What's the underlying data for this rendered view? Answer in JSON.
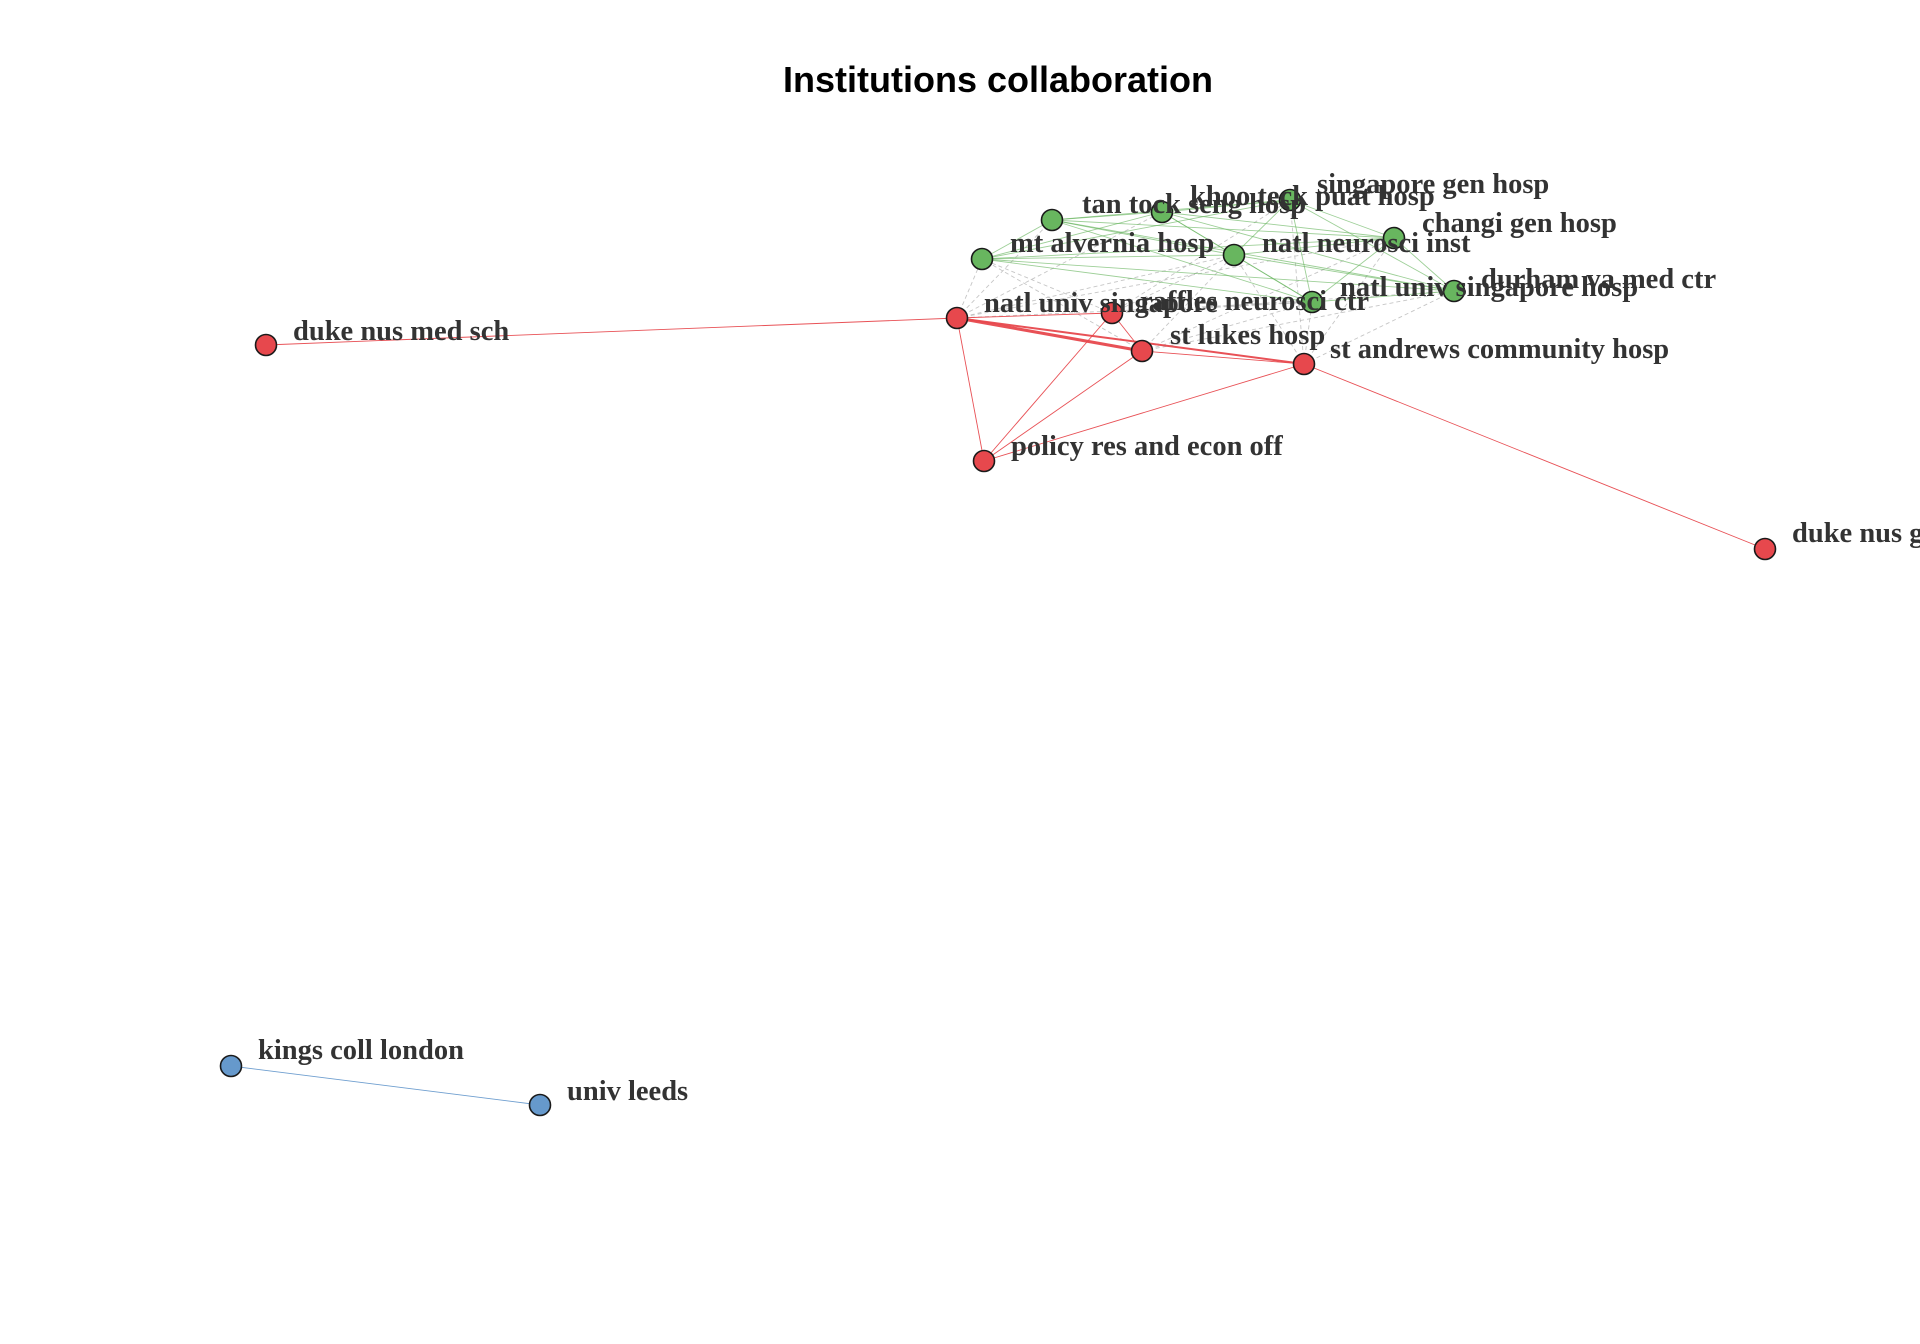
{
  "chart_data": {
    "type": "network",
    "title": "Institutions collaboration",
    "clusters": [
      {
        "id": 1,
        "color": "#E7484D"
      },
      {
        "id": 2,
        "color": "#68B65F"
      },
      {
        "id": 3,
        "color": "#6699CC"
      }
    ],
    "nodes": [
      {
        "id": "singapore_gen_hosp",
        "label": "singapore gen hosp",
        "cluster": 2
      },
      {
        "id": "khoo_teck_puat_hosp",
        "label": "khoo teck puat hosp",
        "cluster": 2
      },
      {
        "id": "tan_tock_seng_hosp",
        "label": "tan tock seng hosp",
        "cluster": 2
      },
      {
        "id": "changi_gen_hosp",
        "label": "changi gen hosp",
        "cluster": 2
      },
      {
        "id": "mt_alvernia_hosp",
        "label": "mt alvernia hosp",
        "cluster": 2
      },
      {
        "id": "natl_neurosci_inst",
        "label": "natl neurosci inst",
        "cluster": 2
      },
      {
        "id": "natl_univ_singapore_hosp",
        "label": "natl univ singapore hosp",
        "cluster": 2
      },
      {
        "id": "durham_va_med_ctr",
        "label": "durham va med ctr",
        "cluster": 2
      },
      {
        "id": "natl_univ_singapore",
        "label": "natl univ singapore",
        "cluster": 1
      },
      {
        "id": "raffles_neurosci_ctr",
        "label": "raffles neurosci ctr",
        "cluster": 1
      },
      {
        "id": "st_lukes_hosp",
        "label": "st lukes hosp",
        "cluster": 1
      },
      {
        "id": "st_andrews_community_hosp",
        "label": "st andrews community hosp",
        "cluster": 1
      },
      {
        "id": "policy_res_and_econ_off",
        "label": "policy res and econ off",
        "cluster": 1
      },
      {
        "id": "duke_nus_med_sch",
        "label": "duke nus med sch",
        "cluster": 1
      },
      {
        "id": "duke_nus_grad_med_sch",
        "label": "duke nus grad med sc",
        "cluster": 1
      },
      {
        "id": "kings_coll_london",
        "label": "kings coll london",
        "cluster": 3
      },
      {
        "id": "univ_leeds",
        "label": "univ leeds",
        "cluster": 3
      }
    ],
    "edges": [
      {
        "source": "natl_univ_singapore",
        "target": "st_lukes_hosp",
        "weight": 3,
        "type": "intra"
      },
      {
        "source": "natl_univ_singapore",
        "target": "st_andrews_community_hosp",
        "weight": 2,
        "type": "intra"
      },
      {
        "source": "natl_univ_singapore",
        "target": "raffles_neurosci_ctr",
        "weight": 1,
        "type": "intra"
      },
      {
        "source": "natl_univ_singapore",
        "target": "policy_res_and_econ_off",
        "weight": 1,
        "type": "intra"
      },
      {
        "source": "natl_univ_singapore",
        "target": "duke_nus_med_sch",
        "weight": 1,
        "type": "intra"
      },
      {
        "source": "raffles_neurosci_ctr",
        "target": "st_lukes_hosp",
        "weight": 1,
        "type": "intra"
      },
      {
        "source": "raffles_neurosci_ctr",
        "target": "policy_res_and_econ_off",
        "weight": 1,
        "type": "intra"
      },
      {
        "source": "st_lukes_hosp",
        "target": "policy_res_and_econ_off",
        "weight": 1,
        "type": "intra"
      },
      {
        "source": "st_lukes_hosp",
        "target": "st_andrews_community_hosp",
        "weight": 1,
        "type": "intra"
      },
      {
        "source": "st_andrews_community_hosp",
        "target": "policy_res_and_econ_off",
        "weight": 1,
        "type": "intra"
      },
      {
        "source": "st_andrews_community_hosp",
        "target": "duke_nus_grad_med_sch",
        "weight": 1,
        "type": "intra"
      },
      {
        "source": "kings_coll_london",
        "target": "univ_leeds",
        "weight": 1,
        "type": "intra"
      },
      {
        "source": "singapore_gen_hosp",
        "target": "khoo_teck_puat_hosp",
        "weight": 1,
        "type": "intra"
      },
      {
        "source": "singapore_gen_hosp",
        "target": "tan_tock_seng_hosp",
        "weight": 1,
        "type": "intra"
      },
      {
        "source": "singapore_gen_hosp",
        "target": "changi_gen_hosp",
        "weight": 1,
        "type": "intra"
      },
      {
        "source": "singapore_gen_hosp",
        "target": "mt_alvernia_hosp",
        "weight": 1,
        "type": "intra"
      },
      {
        "source": "singapore_gen_hosp",
        "target": "natl_neurosci_inst",
        "weight": 1,
        "type": "intra"
      },
      {
        "source": "singapore_gen_hosp",
        "target": "natl_univ_singapore_hosp",
        "weight": 1,
        "type": "intra"
      },
      {
        "source": "singapore_gen_hosp",
        "target": "durham_va_med_ctr",
        "weight": 1,
        "type": "intra"
      },
      {
        "source": "khoo_teck_puat_hosp",
        "target": "tan_tock_seng_hosp",
        "weight": 1,
        "type": "intra"
      },
      {
        "source": "khoo_teck_puat_hosp",
        "target": "changi_gen_hosp",
        "weight": 1,
        "type": "intra"
      },
      {
        "source": "khoo_teck_puat_hosp",
        "target": "mt_alvernia_hosp",
        "weight": 1,
        "type": "intra"
      },
      {
        "source": "khoo_teck_puat_hosp",
        "target": "natl_neurosci_inst",
        "weight": 1,
        "type": "intra"
      },
      {
        "source": "khoo_teck_puat_hosp",
        "target": "natl_univ_singapore_hosp",
        "weight": 1,
        "type": "intra"
      },
      {
        "source": "khoo_teck_puat_hosp",
        "target": "durham_va_med_ctr",
        "weight": 1,
        "type": "intra"
      },
      {
        "source": "tan_tock_seng_hosp",
        "target": "changi_gen_hosp",
        "weight": 1,
        "type": "intra"
      },
      {
        "source": "tan_tock_seng_hosp",
        "target": "mt_alvernia_hosp",
        "weight": 1,
        "type": "intra"
      },
      {
        "source": "tan_tock_seng_hosp",
        "target": "natl_neurosci_inst",
        "weight": 1,
        "type": "intra"
      },
      {
        "source": "tan_tock_seng_hosp",
        "target": "natl_univ_singapore_hosp",
        "weight": 1,
        "type": "intra"
      },
      {
        "source": "tan_tock_seng_hosp",
        "target": "durham_va_med_ctr",
        "weight": 1,
        "type": "intra"
      },
      {
        "source": "changi_gen_hosp",
        "target": "mt_alvernia_hosp",
        "weight": 1,
        "type": "intra"
      },
      {
        "source": "changi_gen_hosp",
        "target": "natl_neurosci_inst",
        "weight": 1,
        "type": "intra"
      },
      {
        "source": "changi_gen_hosp",
        "target": "natl_univ_singapore_hosp",
        "weight": 1,
        "type": "intra"
      },
      {
        "source": "changi_gen_hosp",
        "target": "durham_va_med_ctr",
        "weight": 1,
        "type": "intra"
      },
      {
        "source": "mt_alvernia_hosp",
        "target": "natl_neurosci_inst",
        "weight": 1,
        "type": "intra"
      },
      {
        "source": "mt_alvernia_hosp",
        "target": "natl_univ_singapore_hosp",
        "weight": 1,
        "type": "intra"
      },
      {
        "source": "mt_alvernia_hosp",
        "target": "durham_va_med_ctr",
        "weight": 1,
        "type": "intra"
      },
      {
        "source": "natl_neurosci_inst",
        "target": "natl_univ_singapore_hosp",
        "weight": 1,
        "type": "intra"
      },
      {
        "source": "natl_neurosci_inst",
        "target": "durham_va_med_ctr",
        "weight": 1,
        "type": "intra"
      },
      {
        "source": "natl_univ_singapore_hosp",
        "target": "durham_va_med_ctr",
        "weight": 1,
        "type": "intra"
      },
      {
        "source": "natl_univ_singapore",
        "target": "mt_alvernia_hosp",
        "weight": 1,
        "type": "inter"
      },
      {
        "source": "natl_univ_singapore",
        "target": "tan_tock_seng_hosp",
        "weight": 1,
        "type": "inter"
      },
      {
        "source": "natl_univ_singapore",
        "target": "khoo_teck_puat_hosp",
        "weight": 1,
        "type": "inter"
      },
      {
        "source": "natl_univ_singapore",
        "target": "natl_neurosci_inst",
        "weight": 1,
        "type": "inter"
      },
      {
        "source": "natl_univ_singapore",
        "target": "natl_univ_singapore_hosp",
        "weight": 1,
        "type": "inter"
      },
      {
        "source": "natl_univ_singapore",
        "target": "changi_gen_hosp",
        "weight": 1,
        "type": "inter"
      },
      {
        "source": "raffles_neurosci_ctr",
        "target": "mt_alvernia_hosp",
        "weight": 1,
        "type": "inter"
      },
      {
        "source": "raffles_neurosci_ctr",
        "target": "natl_neurosci_inst",
        "weight": 1,
        "type": "inter"
      },
      {
        "source": "raffles_neurosci_ctr",
        "target": "natl_univ_singapore_hosp",
        "weight": 1,
        "type": "inter"
      },
      {
        "source": "raffles_neurosci_ctr",
        "target": "singapore_gen_hosp",
        "weight": 1,
        "type": "inter"
      },
      {
        "source": "raffles_neurosci_ctr",
        "target": "durham_va_med_ctr",
        "weight": 1,
        "type": "inter"
      },
      {
        "source": "st_lukes_hosp",
        "target": "natl_neurosci_inst",
        "weight": 1,
        "type": "inter"
      },
      {
        "source": "st_lukes_hosp",
        "target": "natl_univ_singapore_hosp",
        "weight": 1,
        "type": "inter"
      },
      {
        "source": "st_lukes_hosp",
        "target": "changi_gen_hosp",
        "weight": 1,
        "type": "inter"
      },
      {
        "source": "st_lukes_hosp",
        "target": "durham_va_med_ctr",
        "weight": 1,
        "type": "inter"
      },
      {
        "source": "st_lukes_hosp",
        "target": "mt_alvernia_hosp",
        "weight": 1,
        "type": "inter"
      },
      {
        "source": "st_andrews_community_hosp",
        "target": "natl_univ_singapore_hosp",
        "weight": 1,
        "type": "inter"
      },
      {
        "source": "st_andrews_community_hosp",
        "target": "durham_va_med_ctr",
        "weight": 1,
        "type": "inter"
      },
      {
        "source": "st_andrews_community_hosp",
        "target": "changi_gen_hosp",
        "weight": 1,
        "type": "inter"
      },
      {
        "source": "st_andrews_community_hosp",
        "target": "natl_neurosci_inst",
        "weight": 1,
        "type": "inter"
      },
      {
        "source": "st_andrews_community_hosp",
        "target": "singapore_gen_hosp",
        "weight": 1,
        "type": "inter"
      }
    ]
  }
}
